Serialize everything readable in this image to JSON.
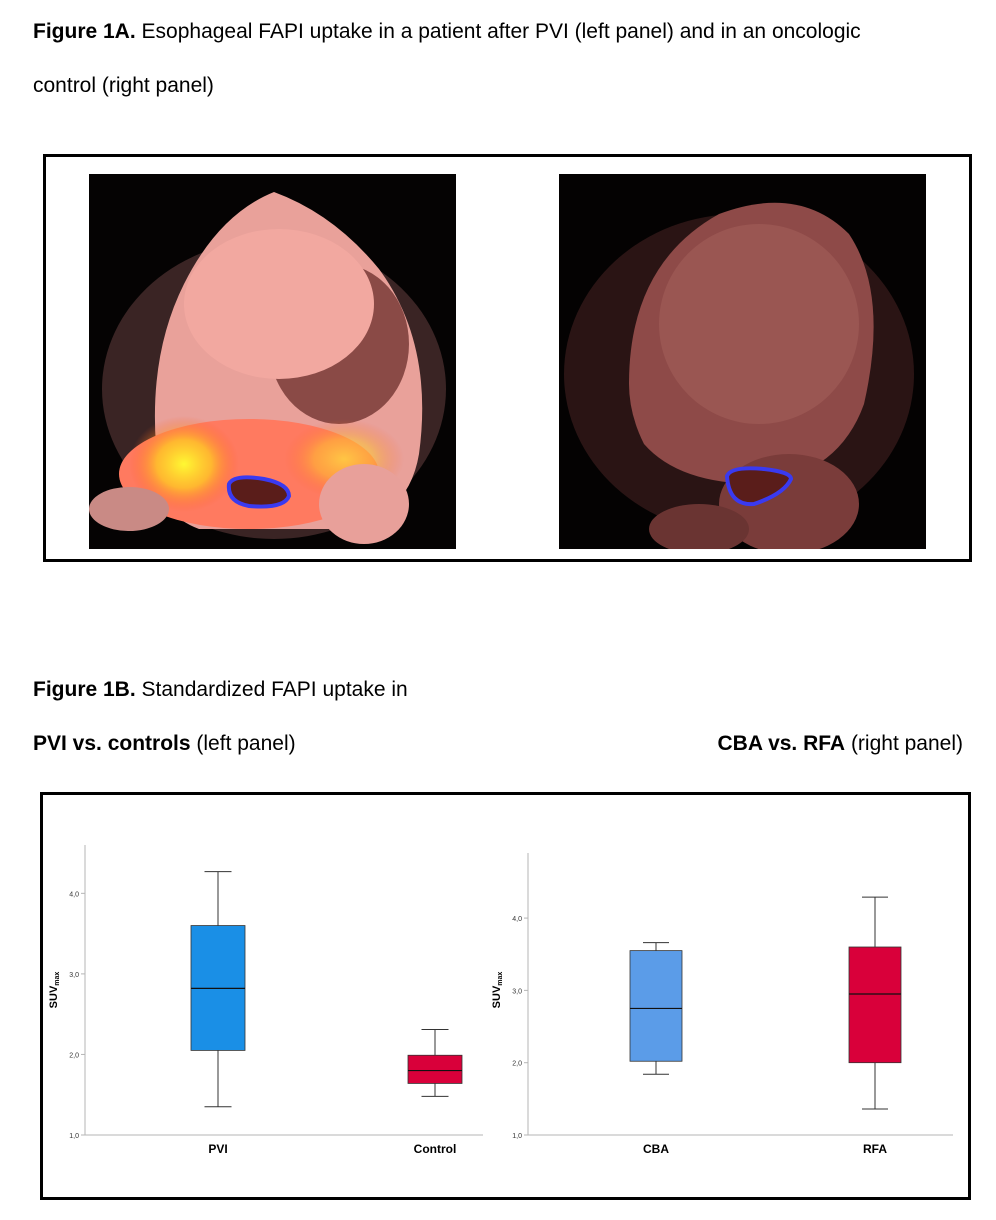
{
  "fig1a": {
    "label": "Figure 1A.",
    "caption_line1": "Esophageal FAPI uptake in a patient after PVI (left panel) and in an oncologic",
    "caption_line2": "control (right panel)"
  },
  "fig1b": {
    "label": "Figure 1B.",
    "caption": "Standardized FAPI uptake in",
    "left_title_bold": "PVI vs. controls",
    "left_title_rest": " (left panel)",
    "right_title_bold": "CBA vs. RFA",
    "right_title_rest": " (right panel)"
  },
  "colors": {
    "blue": "#1a8fe6",
    "light_blue": "#5b9ce8",
    "red": "#d9003a",
    "roi": "#3a3af0"
  },
  "chart_data": [
    {
      "type": "box",
      "ylabel": "SUVmax",
      "ylim": [
        1.0,
        4.6
      ],
      "yticks": [
        "1,0",
        "2,0",
        "3,0",
        "4,0"
      ],
      "ytick_values": [
        1.0,
        2.0,
        3.0,
        4.0
      ],
      "categories": [
        "PVI",
        "Control"
      ],
      "boxes": [
        {
          "name": "PVI",
          "min": 1.35,
          "q1": 2.05,
          "median": 2.82,
          "q3": 3.6,
          "max": 4.27,
          "color": "#1a8fe6"
        },
        {
          "name": "Control",
          "min": 1.48,
          "q1": 1.64,
          "median": 1.8,
          "q3": 1.99,
          "max": 2.31,
          "color": "#d9003a"
        }
      ]
    },
    {
      "type": "box",
      "ylabel": "SUVmax",
      "ylim": [
        1.0,
        4.9
      ],
      "yticks": [
        "1,0",
        "2,0",
        "3,0",
        "4,0"
      ],
      "ytick_values": [
        1.0,
        2.0,
        3.0,
        4.0
      ],
      "categories": [
        "CBA",
        "RFA"
      ],
      "boxes": [
        {
          "name": "CBA",
          "min": 1.84,
          "q1": 2.02,
          "median": 2.75,
          "q3": 3.55,
          "max": 3.66,
          "color": "#5b9ce8"
        },
        {
          "name": "RFA",
          "min": 1.36,
          "q1": 2.0,
          "median": 2.95,
          "q3": 3.6,
          "max": 4.29,
          "color": "#d9003a"
        }
      ]
    }
  ]
}
